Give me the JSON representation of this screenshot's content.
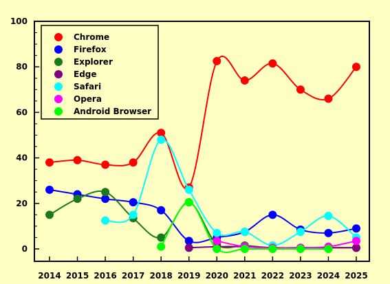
{
  "chart_data": {
    "type": "line",
    "title": "",
    "xlabel": "",
    "ylabel": "",
    "ylim": [
      0,
      100
    ],
    "yticks": [
      0,
      20,
      40,
      60,
      80,
      100
    ],
    "x": [
      2014,
      2015,
      2016,
      2017,
      2018,
      2019,
      2020,
      2021,
      2022,
      2023,
      2024,
      2025
    ],
    "grid": false,
    "legend_position": "top-left",
    "series": [
      {
        "name": "Chrome",
        "color": "#ff0000",
        "values": [
          38,
          39,
          37,
          38,
          51,
          27,
          82.5,
          74,
          81.5,
          70,
          66,
          80
        ]
      },
      {
        "name": "Firefox",
        "color": "#0000ff",
        "values": [
          26,
          24,
          22,
          20.5,
          17,
          3.5,
          5,
          7.5,
          15,
          8.5,
          7,
          9
        ]
      },
      {
        "name": "Explorer",
        "color": "#1a7a1a",
        "values": [
          15,
          22,
          25,
          13.5,
          5,
          20.5,
          2,
          1.5,
          0.5,
          0.5,
          0.5,
          0.5
        ]
      },
      {
        "name": "Edge",
        "color": "#800080",
        "values": [
          null,
          null,
          null,
          null,
          null,
          0.5,
          1,
          1,
          0.5,
          0.5,
          0.5,
          0.5
        ]
      },
      {
        "name": "Safari",
        "color": "#00ffff",
        "values": [
          null,
          null,
          12.5,
          15,
          48,
          26,
          7,
          7.5,
          1.5,
          7.5,
          14.5,
          5
        ]
      },
      {
        "name": "Opera",
        "color": "#ff00ff",
        "values": [
          null,
          null,
          null,
          null,
          null,
          null,
          3.5,
          1,
          0.5,
          0.5,
          1,
          3.5
        ]
      },
      {
        "name": "Android Browser",
        "color": "#00ff00",
        "values": [
          null,
          null,
          null,
          null,
          1,
          20.5,
          0,
          0,
          0,
          0,
          0,
          null
        ]
      }
    ]
  }
}
